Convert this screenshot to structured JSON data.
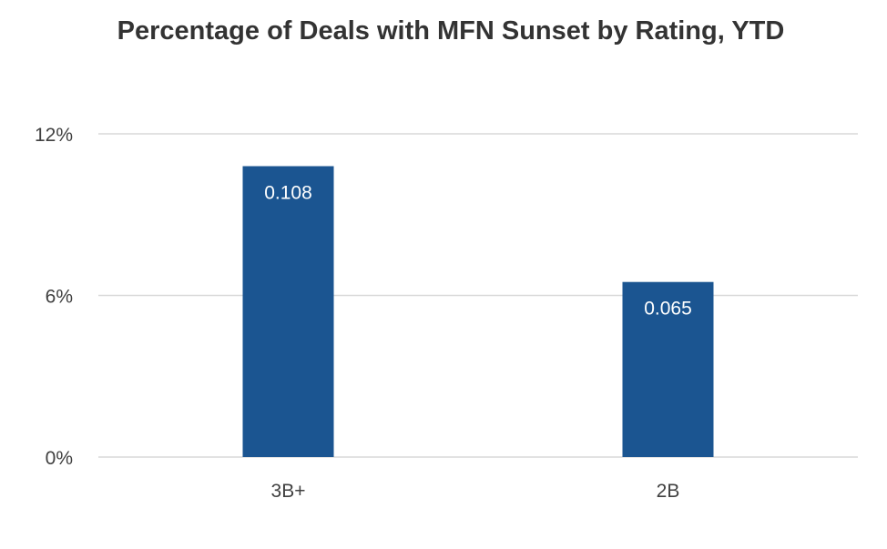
{
  "chart_data": {
    "type": "bar",
    "title": "Percentage of Deals with MFN Sunset by Rating, YTD",
    "categories": [
      "3B+",
      "2B"
    ],
    "values": [
      0.108,
      0.065
    ],
    "data_labels": [
      "0.108",
      "0.065"
    ],
    "y_ticks": [
      0,
      0.06,
      0.12
    ],
    "y_tick_labels": [
      "0%",
      "6%",
      "12%"
    ],
    "ylim": [
      0,
      0.12
    ],
    "grid": true,
    "legend": "none",
    "bar_color": "#1B5591",
    "grid_color": "#D9D9D9"
  }
}
